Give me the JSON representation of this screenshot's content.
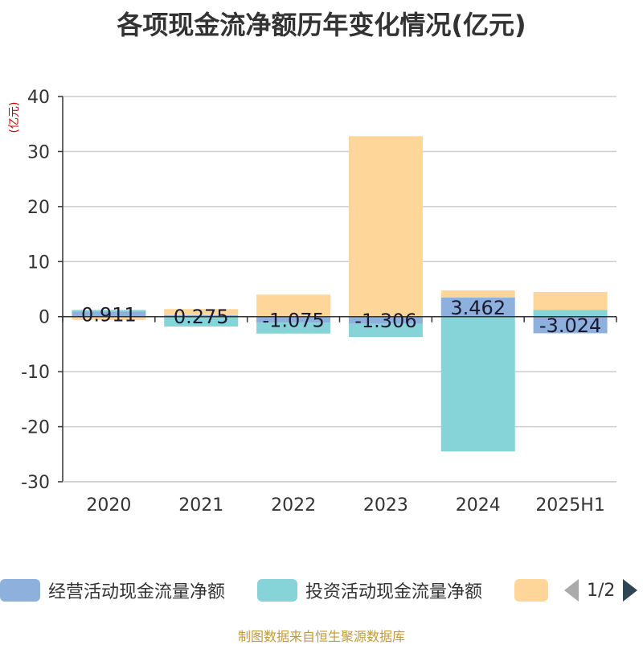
{
  "chart_data": {
    "type": "bar",
    "title": "各项现金流净额历年变化情况(亿元)",
    "unit_label": "(亿元)",
    "categories": [
      "2020",
      "2021",
      "2022",
      "2023",
      "2024",
      "2025H1"
    ],
    "ylim": [
      -30,
      40
    ],
    "yticks": [
      -30,
      -20,
      -10,
      0,
      10,
      20,
      30,
      40
    ],
    "grid": true,
    "legend_position": "bottom",
    "series": [
      {
        "name": "经营活动现金流量净额",
        "color": "#8eb0dd",
        "values": [
          0.911,
          0.275,
          -1.075,
          -1.306,
          3.462,
          -3.024
        ]
      },
      {
        "name": "投资活动现金流量净额",
        "color": "#86d4d7",
        "values": [
          0.3,
          -1.8,
          -2.0,
          -2.4,
          -24.5,
          1.2
        ]
      },
      {
        "name": "",
        "color": "#ffd699",
        "values": [
          -0.6,
          1.1,
          4.0,
          32.8,
          1.3,
          3.3
        ]
      }
    ],
    "data_labels": [
      "0.911",
      "0.275",
      "-1.075",
      "-1.306",
      "3.462",
      "-3.024"
    ]
  },
  "legend": {
    "items": [
      "经营活动现金流量净额",
      "投资活动现金流量净额",
      ""
    ],
    "pager": "1/2"
  },
  "source": "制图数据来自恒生聚源数据库"
}
